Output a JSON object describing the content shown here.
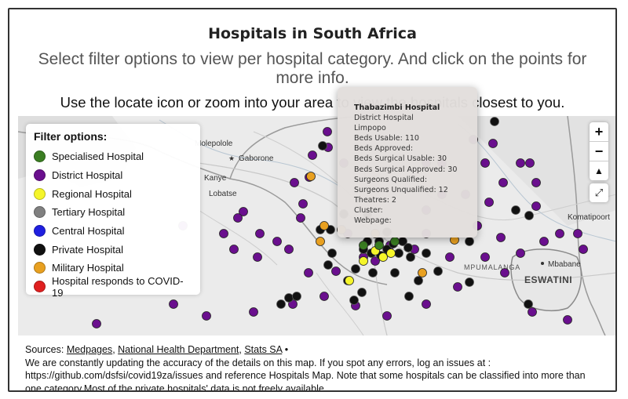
{
  "header": {
    "title": "Hospitals in South Africa",
    "subtitle": "Select filter options to view per hospital category. And click on the points for more info.",
    "subtitle2": "Use the locate icon or zoom into your area to view the hospitals closest to you."
  },
  "legend": {
    "title": "Filter options:",
    "items": [
      {
        "label": "Specialised Hospital",
        "color": "#3a7d22"
      },
      {
        "label": "District Hospital",
        "color": "#6a0f8e"
      },
      {
        "label": "Regional Hospital",
        "color": "#f5f52a"
      },
      {
        "label": "Tertiary Hospital",
        "color": "#808080"
      },
      {
        "label": "Central Hospital",
        "color": "#1f1fe0"
      },
      {
        "label": "Private Hospital",
        "color": "#111111"
      },
      {
        "label": "Military Hospital",
        "color": "#e8a020"
      },
      {
        "label": "Hospital responds to COVID-19",
        "color": "#e02020"
      }
    ]
  },
  "map": {
    "place_labels": {
      "molepolole": "Molepolole",
      "gaborone": "Gaborone",
      "kanye": "Kanye",
      "lobatse": "Lobatse",
      "mpumalanga": "MPUMALANGA",
      "mbabane": "Mbabane",
      "eswatini": "ESWATINI",
      "komatipoort": "Komatipoort"
    },
    "controls": {
      "zoom_in": "+",
      "zoom_out": "−",
      "locate": "▲",
      "fullscreen": "⤢"
    }
  },
  "popup": {
    "name": "Thabazimbi Hospital",
    "category": "District Hospital",
    "province": "Limpopo",
    "beds_usable": "Beds Usable: 110",
    "beds_approved": "Beds Approved:",
    "beds_surgical_usable": "Beds Surgical Usable: 30",
    "beds_surgical_approved": "Beds Surgical Approved: 30",
    "surgeons_qualified": "Surgeons Qualified:",
    "surgeons_unqualified": "Surgeons Unqualified: 12",
    "theatres": "Theatres: 2",
    "cluster": "Cluster:",
    "webpage": "Webpage:"
  },
  "sources": {
    "prefix": "Sources: ",
    "link1": "Medpages",
    "sep1": ", ",
    "link2": "National Health Department",
    "sep2": ", ",
    "link3": "Stats SA",
    "suffix": " •",
    "note": "We are constantly updating the accuracy of the details on this map. If you spot any errors, log an issues at : https://github.com/dsfsi/covid19za/issues and reference Hospitals Map. Note that some hospitals can be classified into more than one category.Most of the private hospitals' data is not freely available."
  }
}
